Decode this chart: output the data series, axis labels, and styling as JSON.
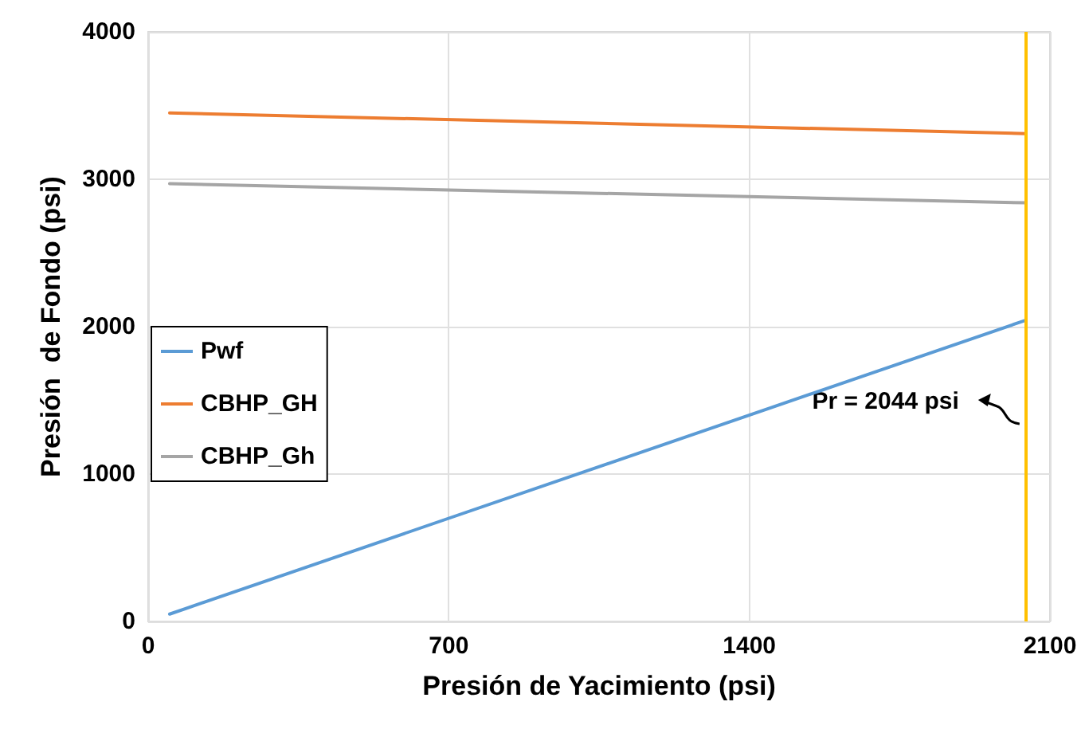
{
  "chart_data": {
    "type": "line",
    "xlabel": "Presión de Yacimiento (psi)",
    "ylabel": "Presión  de Fondo (psi)",
    "x": [
      50,
      2044
    ],
    "xlim": [
      0,
      2100
    ],
    "xticks": [
      0,
      700,
      1400,
      2100
    ],
    "ylim": [
      0,
      4000
    ],
    "yticks": [
      0,
      1000,
      2000,
      3000,
      4000
    ],
    "grid": true,
    "legend": "left",
    "marker": "none",
    "series": [
      {
        "name": "Pwf",
        "color": "#5b9bd5",
        "values": [
          50,
          2044
        ]
      },
      {
        "name": "CBHP_GH",
        "color": "#ed7d31",
        "values": [
          3450,
          3310
        ]
      },
      {
        "name": "CBHP_Gh",
        "color": "#a5a5a5",
        "values": [
          2970,
          2840
        ]
      }
    ],
    "ref_lines": [
      {
        "axis": "x",
        "value": 2044,
        "label": "Pr = 2044 psi",
        "color": "#ffc000"
      }
    ]
  }
}
